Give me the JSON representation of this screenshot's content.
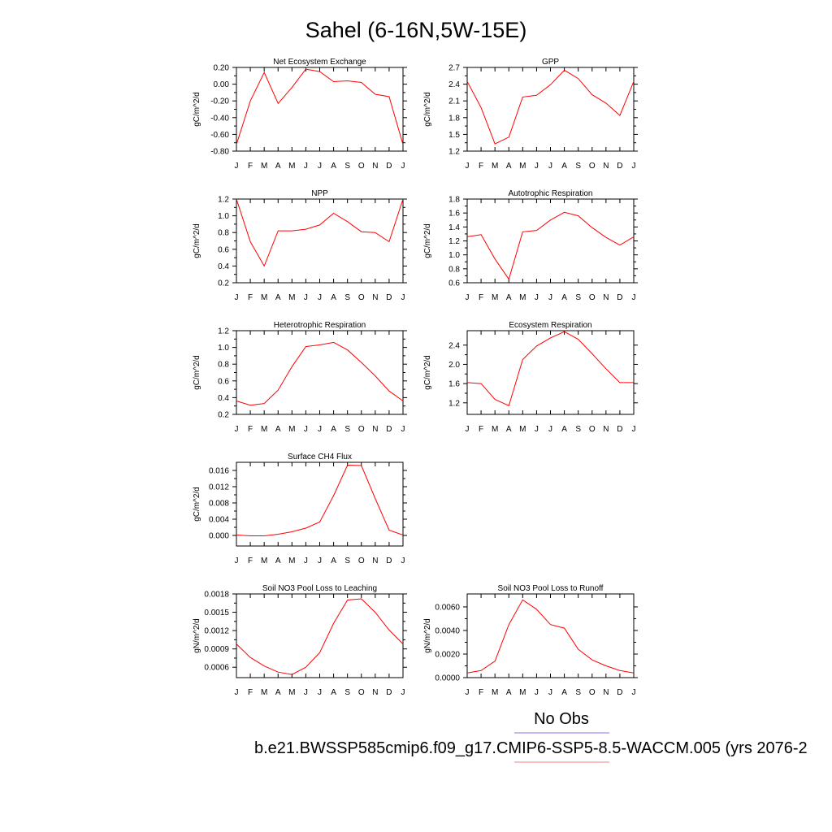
{
  "figure": {
    "title": "Sahel (6-16N,5W-15E)",
    "legend": [
      {
        "label": "No Obs",
        "color": "#7b7bea"
      },
      {
        "label": "b.e21.BWSSP585cmip6.f09_g17.CMIP6-SSP5-8.5-WACCM.005 (yrs 2076-2",
        "color": "#f08080"
      }
    ]
  },
  "chart_data": [
    {
      "type": "line",
      "title": "Net Ecosystem Exchange",
      "ylabel": "gC/m^2/d",
      "ylim": [
        -0.8,
        0.2
      ],
      "yticks": [
        -0.8,
        -0.6,
        -0.4,
        -0.2,
        0.0,
        0.2
      ],
      "ytick_labels": [
        "-0.80",
        "-0.60",
        "-0.40",
        "-0.20",
        "0.00",
        "0.20"
      ],
      "categories": [
        "J",
        "F",
        "M",
        "A",
        "M",
        "J",
        "J",
        "A",
        "S",
        "O",
        "N",
        "D",
        "J"
      ],
      "series": [
        {
          "color": "#ff0000",
          "values": [
            -0.72,
            -0.2,
            0.14,
            -0.23,
            -0.04,
            0.18,
            0.15,
            0.03,
            0.04,
            0.02,
            -0.12,
            -0.15,
            -0.72
          ]
        }
      ]
    },
    {
      "type": "line",
      "title": "GPP",
      "ylabel": "gC/m^2/d",
      "ylim": [
        1.2,
        2.7
      ],
      "yticks": [
        1.2,
        1.5,
        1.8,
        2.1,
        2.4,
        2.7
      ],
      "ytick_labels": [
        "1.2",
        "1.5",
        "1.8",
        "2.1",
        "2.4",
        "2.7"
      ],
      "categories": [
        "J",
        "F",
        "M",
        "A",
        "M",
        "J",
        "J",
        "A",
        "S",
        "O",
        "N",
        "D",
        "J"
      ],
      "series": [
        {
          "color": "#ff0000",
          "values": [
            2.45,
            1.98,
            1.33,
            1.45,
            2.17,
            2.2,
            2.39,
            2.65,
            2.5,
            2.21,
            2.06,
            1.84,
            2.45
          ]
        }
      ]
    },
    {
      "type": "line",
      "title": "NPP",
      "ylabel": "gC/m^2/d",
      "ylim": [
        0.2,
        1.2
      ],
      "yticks": [
        0.2,
        0.4,
        0.6,
        0.8,
        1.0,
        1.2
      ],
      "ytick_labels": [
        "0.2",
        "0.4",
        "0.6",
        "0.8",
        "1.0",
        "1.2"
      ],
      "categories": [
        "J",
        "F",
        "M",
        "A",
        "M",
        "J",
        "J",
        "A",
        "S",
        "O",
        "N",
        "D",
        "J"
      ],
      "series": [
        {
          "color": "#ff0000",
          "values": [
            1.2,
            0.69,
            0.4,
            0.82,
            0.82,
            0.84,
            0.89,
            1.03,
            0.93,
            0.81,
            0.8,
            0.69,
            1.2
          ]
        }
      ]
    },
    {
      "type": "line",
      "title": "Autotrophic Respiration",
      "ylabel": "gC/m^2/d",
      "ylim": [
        0.6,
        1.8
      ],
      "yticks": [
        0.6,
        0.8,
        1.0,
        1.2,
        1.4,
        1.6,
        1.8
      ],
      "ytick_labels": [
        "0.6",
        "0.8",
        "1.0",
        "1.2",
        "1.4",
        "1.6",
        "1.8"
      ],
      "categories": [
        "J",
        "F",
        "M",
        "A",
        "M",
        "J",
        "J",
        "A",
        "S",
        "O",
        "N",
        "D",
        "J"
      ],
      "series": [
        {
          "color": "#ff0000",
          "values": [
            1.26,
            1.29,
            0.94,
            0.65,
            1.33,
            1.35,
            1.5,
            1.61,
            1.56,
            1.39,
            1.25,
            1.14,
            1.26
          ]
        }
      ]
    },
    {
      "type": "line",
      "title": "Heterotrophic Respiration",
      "ylabel": "gC/m^2/d",
      "ylim": [
        0.2,
        1.2
      ],
      "yticks": [
        0.2,
        0.4,
        0.6,
        0.8,
        1.0,
        1.2
      ],
      "ytick_labels": [
        "0.2",
        "0.4",
        "0.6",
        "0.8",
        "1.0",
        "1.2"
      ],
      "categories": [
        "J",
        "F",
        "M",
        "A",
        "M",
        "J",
        "J",
        "A",
        "S",
        "O",
        "N",
        "D",
        "J"
      ],
      "series": [
        {
          "color": "#ff0000",
          "values": [
            0.36,
            0.31,
            0.33,
            0.49,
            0.77,
            1.01,
            1.03,
            1.06,
            0.97,
            0.82,
            0.66,
            0.48,
            0.36
          ]
        }
      ]
    },
    {
      "type": "line",
      "title": "Ecosystem Respiration",
      "ylabel": "gC/m^2/d",
      "ylim": [
        0.96,
        2.7
      ],
      "yticks": [
        1.2,
        1.6,
        2.0,
        2.4
      ],
      "ytick_labels": [
        "1.2",
        "1.6",
        "2.0",
        "2.4"
      ],
      "categories": [
        "J",
        "F",
        "M",
        "A",
        "M",
        "J",
        "J",
        "A",
        "S",
        "O",
        "N",
        "D",
        "J"
      ],
      "series": [
        {
          "color": "#ff0000",
          "values": [
            1.62,
            1.6,
            1.27,
            1.14,
            2.1,
            2.38,
            2.55,
            2.68,
            2.52,
            2.22,
            1.91,
            1.62,
            1.62
          ]
        }
      ]
    },
    {
      "type": "line",
      "title": "Surface CH4 Flux",
      "ylabel": "gC/m^2/d",
      "ylim": [
        -0.0026,
        0.018
      ],
      "yticks": [
        0.0,
        0.004,
        0.008,
        0.012,
        0.016
      ],
      "ytick_labels": [
        "0.000",
        "0.004",
        "0.008",
        "0.012",
        "0.016"
      ],
      "categories": [
        "J",
        "F",
        "M",
        "A",
        "M",
        "J",
        "J",
        "A",
        "S",
        "O",
        "N",
        "D",
        "J"
      ],
      "series": [
        {
          "color": "#ff0000",
          "values": [
            0.0001,
            -0.0001,
            -0.0001,
            0.0003,
            0.0009,
            0.0018,
            0.0033,
            0.0098,
            0.0173,
            0.0172,
            0.0091,
            0.0013,
            0.0001
          ]
        }
      ]
    },
    {
      "type": "line",
      "title": "Soil NO3 Pool Loss to Leaching",
      "ylabel": "gN/m^2/d",
      "ylim": [
        0.00043,
        0.0018
      ],
      "yticks": [
        0.0006,
        0.0009,
        0.0012,
        0.0015,
        0.0018
      ],
      "ytick_labels": [
        "0.0006",
        "0.0009",
        "0.0012",
        "0.0015",
        "0.0018"
      ],
      "categories": [
        "J",
        "F",
        "M",
        "A",
        "M",
        "J",
        "J",
        "A",
        "S",
        "O",
        "N",
        "D",
        "J"
      ],
      "series": [
        {
          "color": "#ff0000",
          "values": [
            0.00098,
            0.00076,
            0.00062,
            0.00052,
            0.00048,
            0.0006,
            0.00084,
            0.00132,
            0.0017,
            0.00172,
            0.0015,
            0.00121,
            0.00098
          ]
        }
      ]
    },
    {
      "type": "line",
      "title": "Soil NO3 Pool Loss to Runoff",
      "ylabel": "gN/m^2/d",
      "ylim": [
        0.0,
        0.0071
      ],
      "yticks": [
        0.0,
        0.002,
        0.004,
        0.006
      ],
      "ytick_labels": [
        "0.0000",
        "0.0020",
        "0.0040",
        "0.0060"
      ],
      "categories": [
        "J",
        "F",
        "M",
        "A",
        "M",
        "J",
        "J",
        "A",
        "S",
        "O",
        "N",
        "D",
        "J"
      ],
      "series": [
        {
          "color": "#ff0000",
          "values": [
            0.0004,
            0.0006,
            0.0014,
            0.0045,
            0.0066,
            0.0058,
            0.0045,
            0.0042,
            0.0024,
            0.0015,
            0.001,
            0.0006,
            0.0004
          ]
        }
      ]
    }
  ]
}
